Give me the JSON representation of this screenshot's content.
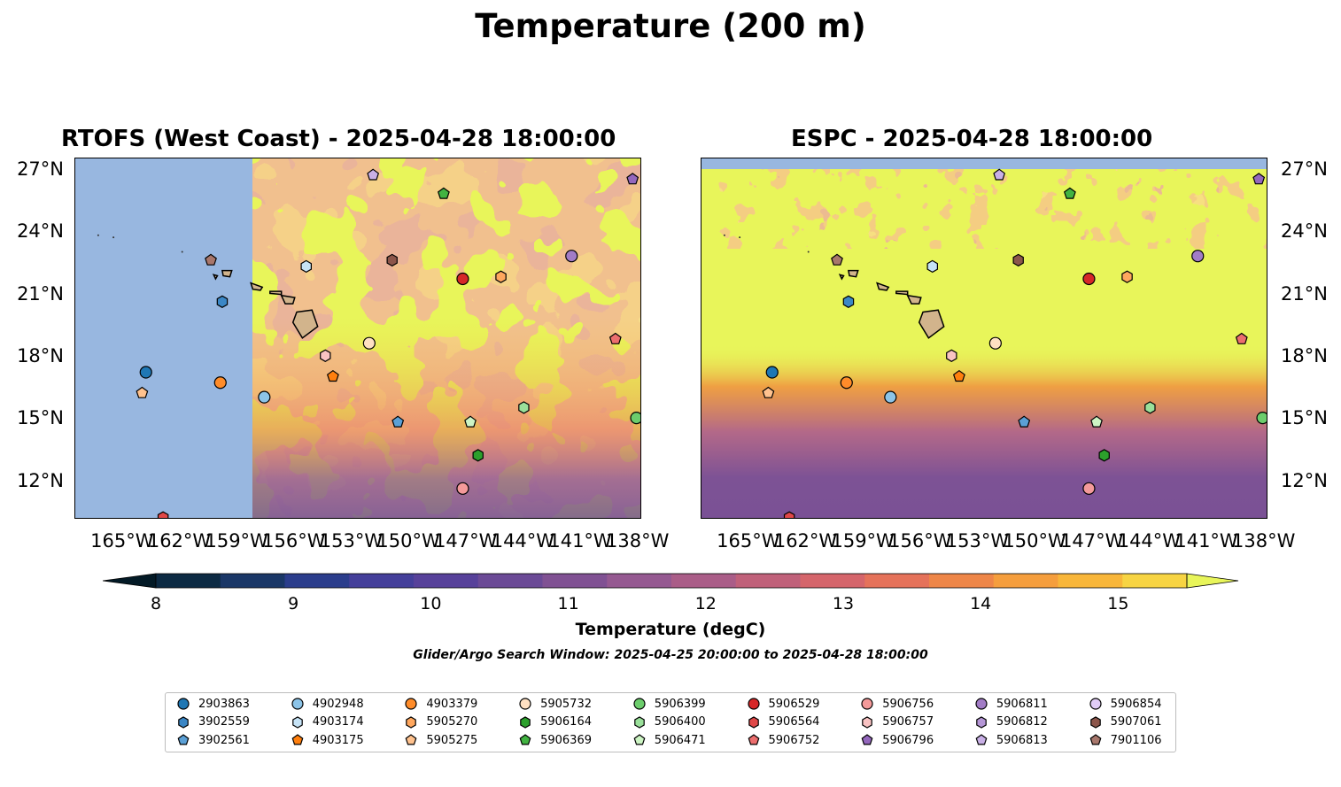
{
  "title": "Temperature (200 m)",
  "panels": [
    {
      "title": "RTOFS (West Coast) - 2025-04-28 18:00:00"
    },
    {
      "title": "ESPC - 2025-04-28 18:00:00"
    }
  ],
  "map": {
    "lon_range": [
      -167.5,
      -137.8
    ],
    "lat_range": [
      10.2,
      27.6
    ],
    "lon_ticks": [
      "165°W",
      "162°W",
      "159°W",
      "156°W",
      "153°W",
      "150°W",
      "147°W",
      "144°W",
      "141°W",
      "138°W"
    ],
    "lat_ticks": [
      "27°N",
      "24°N",
      "21°N",
      "18°N",
      "15°N",
      "12°N"
    ],
    "land_color": "#d2b48c",
    "nodata_color": "#98b7e0"
  },
  "colorbar": {
    "label": "Temperature (degC)",
    "ticks": [
      "8",
      "9",
      "10",
      "11",
      "12",
      "13",
      "14",
      "15"
    ],
    "min": 8,
    "max": 15.5,
    "step": 0.5,
    "colors": [
      "#0c2a43",
      "#1a3767",
      "#2b3d8c",
      "#443f9a",
      "#57419a",
      "#6b4a96",
      "#805193",
      "#955991",
      "#aa5d88",
      "#c0617a",
      "#d5656b",
      "#e5725a",
      "#ee8648",
      "#f59e3d",
      "#f8b63a",
      "#f7d443"
    ],
    "under_color": "#031a26",
    "over_color": "#e8f55a"
  },
  "search_window": "Glider/Argo Search Window: 2025-04-25 20:00:00 to 2025-04-28 18:00:00",
  "legend": [
    {
      "id": "2903863",
      "color": "#1f77b4",
      "marker": "circle"
    },
    {
      "id": "3902559",
      "color": "#3b87c6",
      "marker": "hexagon"
    },
    {
      "id": "3902561",
      "color": "#5ba0d6",
      "marker": "pentagon"
    },
    {
      "id": "4902948",
      "color": "#8cc4e8",
      "marker": "circle"
    },
    {
      "id": "4903174",
      "color": "#c6e3f6",
      "marker": "hexagon"
    },
    {
      "id": "4903175",
      "color": "#ff7f0e",
      "marker": "pentagon"
    },
    {
      "id": "4903379",
      "color": "#ff8c2a",
      "marker": "circle"
    },
    {
      "id": "5905270",
      "color": "#ffa75e",
      "marker": "hexagon"
    },
    {
      "id": "5905275",
      "color": "#ffc28e",
      "marker": "pentagon"
    },
    {
      "id": "5905732",
      "color": "#ffe0c2",
      "marker": "circle"
    },
    {
      "id": "5906164",
      "color": "#2ca02c",
      "marker": "hexagon"
    },
    {
      "id": "5906369",
      "color": "#41b341",
      "marker": "pentagon"
    },
    {
      "id": "5906399",
      "color": "#6ccd6c",
      "marker": "circle"
    },
    {
      "id": "5906400",
      "color": "#9ae09a",
      "marker": "hexagon"
    },
    {
      "id": "5906471",
      "color": "#cdf5c4",
      "marker": "pentagon"
    },
    {
      "id": "5906529",
      "color": "#d62728",
      "marker": "circle"
    },
    {
      "id": "5906564",
      "color": "#e04848",
      "marker": "hexagon"
    },
    {
      "id": "5906752",
      "color": "#ec6e6e",
      "marker": "pentagon"
    },
    {
      "id": "5906756",
      "color": "#f49a9a",
      "marker": "circle"
    },
    {
      "id": "5906757",
      "color": "#f9c3c3",
      "marker": "hexagon"
    },
    {
      "id": "5906796",
      "color": "#9467bd",
      "marker": "pentagon"
    },
    {
      "id": "5906811",
      "color": "#a27cc6",
      "marker": "circle"
    },
    {
      "id": "5906812",
      "color": "#b596d6",
      "marker": "hexagon"
    },
    {
      "id": "5906813",
      "color": "#c9b0e6",
      "marker": "pentagon"
    },
    {
      "id": "5906854",
      "color": "#e0ccf6",
      "marker": "circle"
    },
    {
      "id": "5907061",
      "color": "#8c564b",
      "marker": "hexagon"
    },
    {
      "id": "7901106",
      "color": "#a8776c",
      "marker": "pentagon"
    }
  ],
  "observations": [
    {
      "id": "5906796",
      "lon": -138.3,
      "lat": 26.6
    },
    {
      "id": "5906813",
      "lon": -151.9,
      "lat": 26.8
    },
    {
      "id": "5906369",
      "lon": -148.2,
      "lat": 25.9
    },
    {
      "id": "7901106",
      "lon": -160.4,
      "lat": 22.7
    },
    {
      "id": "5907061",
      "lon": -150.9,
      "lat": 22.7
    },
    {
      "id": "5906811",
      "lon": -141.5,
      "lat": 22.9
    },
    {
      "id": "4903174",
      "lon": -155.4,
      "lat": 22.4
    },
    {
      "id": "5906529",
      "lon": -147.2,
      "lat": 21.8
    },
    {
      "id": "5905270",
      "lon": -145.2,
      "lat": 21.9
    },
    {
      "id": "3902559",
      "lon": -159.8,
      "lat": 20.7
    },
    {
      "id": "5906752",
      "lon": -139.2,
      "lat": 18.9
    },
    {
      "id": "5905732",
      "lon": -152.1,
      "lat": 18.7
    },
    {
      "id": "5906757",
      "lon": -154.4,
      "lat": 18.1
    },
    {
      "id": "4903175",
      "lon": -154.0,
      "lat": 17.1
    },
    {
      "id": "2903863",
      "lon": -163.8,
      "lat": 17.3
    },
    {
      "id": "4903379",
      "lon": -159.9,
      "lat": 16.8
    },
    {
      "id": "5905275",
      "lon": -164.0,
      "lat": 16.3
    },
    {
      "id": "4902948",
      "lon": -157.6,
      "lat": 16.1
    },
    {
      "id": "5906400",
      "lon": -144.0,
      "lat": 15.6
    },
    {
      "id": "3902561",
      "lon": -150.6,
      "lat": 14.9
    },
    {
      "id": "5906471",
      "lon": -146.8,
      "lat": 14.9
    },
    {
      "id": "5906399",
      "lon": -138.1,
      "lat": 15.1
    },
    {
      "id": "5906164",
      "lon": -146.4,
      "lat": 13.3
    },
    {
      "id": "5906756",
      "lon": -147.2,
      "lat": 11.7
    },
    {
      "id": "5906564",
      "lon": -162.9,
      "lat": 10.3
    }
  ]
}
